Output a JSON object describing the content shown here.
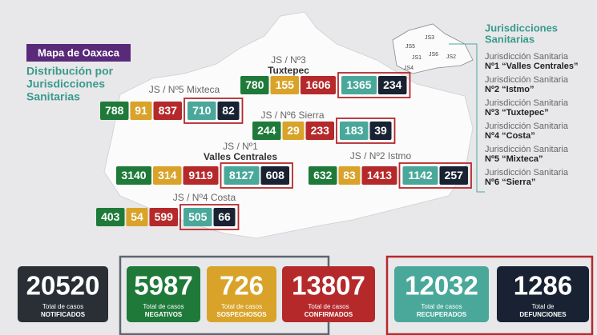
{
  "header": {
    "title": "Mapa de Oaxaca",
    "subtitle": [
      "Distribución por",
      "Jurisdicciones",
      "Sanitarias"
    ]
  },
  "jurisdictions": [
    {
      "label": [
        "JS / Nº3",
        "Tuxtepec"
      ],
      "values": [
        780,
        155,
        1606,
        1365,
        234
      ]
    },
    {
      "label": [
        "JS / Nº5 Mixteca"
      ],
      "values": [
        788,
        91,
        837,
        710,
        82
      ]
    },
    {
      "label": [
        "JS / Nº6 Sierra"
      ],
      "values": [
        244,
        29,
        233,
        183,
        39
      ]
    },
    {
      "label": [
        "JS / Nº1",
        "Valles Centrales"
      ],
      "values": [
        3140,
        314,
        9119,
        8127,
        608
      ]
    },
    {
      "label": [
        "JS / Nº2 Istmo"
      ],
      "values": [
        632,
        83,
        1413,
        1142,
        257
      ]
    },
    {
      "label": [
        "JS / Nº4 Costa"
      ],
      "values": [
        403,
        54,
        599,
        505,
        66
      ]
    }
  ],
  "minimap": [
    "JS3",
    "JS5",
    "JS1",
    "JS6",
    "JS2",
    "JS4"
  ],
  "legend": {
    "title": [
      "Jurisdicciones",
      "Sanitarias"
    ],
    "entries": [
      [
        "Jurisdicción Sanitaria",
        "Nº1 “Valles Centrales”"
      ],
      [
        "Jurisdicción Sanitaria",
        "Nº2 “Istmo”"
      ],
      [
        "Jurisdicción Sanitaria",
        "Nº3 “Tuxtepec”"
      ],
      [
        "Jurisdicción Sanitaria",
        "Nº4 “Costa”"
      ],
      [
        "Jurisdicción Sanitaria",
        "Nº5 “Mixteca”"
      ],
      [
        "Jurisdicción Sanitaria",
        "Nº6 “Sierra”"
      ]
    ]
  },
  "totals": [
    {
      "value": 20520,
      "label": [
        "Total de casos",
        "NOTIFICADOS"
      ]
    },
    {
      "value": 5987,
      "label": [
        "Total de casos",
        "NEGATIVOS"
      ]
    },
    {
      "value": 726,
      "label": [
        "Total de casos",
        "SOSPECHOSOS"
      ]
    },
    {
      "value": 13807,
      "label": [
        "Total de casos",
        "CONFIRMADOS"
      ]
    },
    {
      "value": 12032,
      "label": [
        "Total de casos",
        "RECUPERADOS"
      ]
    },
    {
      "value": 1286,
      "label": [
        "Total de",
        "DEFUNCIONES"
      ]
    }
  ]
}
